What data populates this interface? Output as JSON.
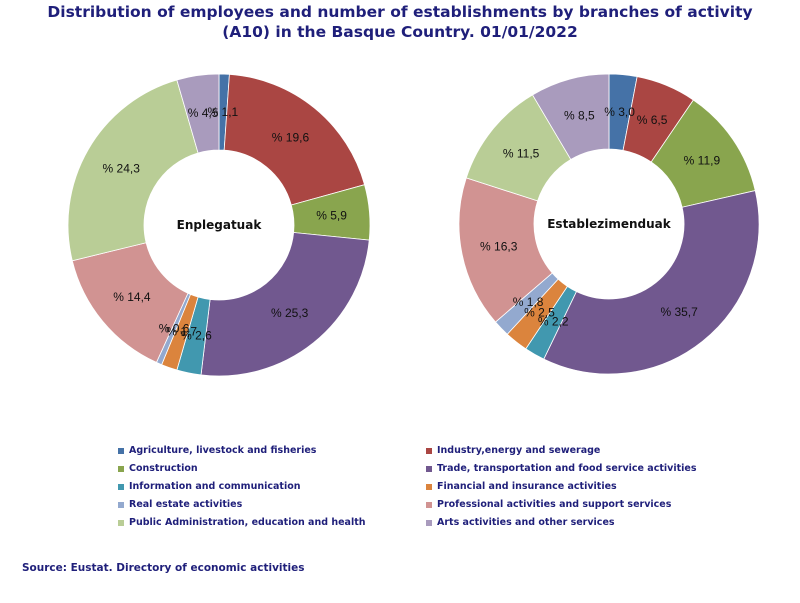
{
  "title": {
    "line1": "Distribution of employees and number of establishments by branches of activity",
    "line2": "(A10) in the Basque Country. 01/01/2022"
  },
  "source": "Source: Eustat. Directory of economic activities",
  "chart_data": [
    {
      "type": "pie",
      "donut": true,
      "center_label": "Enplegatuak",
      "categories": [
        "Agriculture, livestock and fisheries",
        "Industry,energy and sewerage",
        "Construction",
        "Trade, transportation and food service activities",
        "Information and communication",
        "Financial and insurance activities",
        "Real estate activities",
        "Professional activities and support services",
        "Public Administration, education and health",
        "Arts activities and other services"
      ],
      "values": [
        1.1,
        19.6,
        5.9,
        25.3,
        2.6,
        1.7,
        0.6,
        14.4,
        24.3,
        4.5
      ],
      "data_labels": [
        "% 1,1",
        "% 19,6",
        "% 5,9",
        "% 25,3",
        "% 2,6",
        "% 1,7",
        "% 0,6",
        "% 14,4",
        "% 24,3",
        "% 4,5"
      ]
    },
    {
      "type": "pie",
      "donut": true,
      "center_label": "Establezimenduak",
      "categories": [
        "Agriculture, livestock and fisheries",
        "Industry,energy and sewerage",
        "Construction",
        "Trade, transportation and food service activities",
        "Information and communication",
        "Financial and insurance activities",
        "Real estate activities",
        "Professional activities and support services",
        "Public Administration, education and health",
        "Arts activities and other services"
      ],
      "values": [
        3.0,
        6.5,
        11.9,
        35.7,
        2.2,
        2.5,
        1.8,
        16.3,
        11.5,
        8.5
      ],
      "data_labels": [
        "% 3,0",
        "% 6,5",
        "% 11,9",
        "% 35,7",
        "% 2,2",
        "% 2,5",
        "% 1,8",
        "% 16,3",
        "% 11,5",
        "% 8,5"
      ]
    }
  ],
  "legend": {
    "placement": "bottom",
    "items": [
      {
        "label": "Agriculture, livestock and fisheries",
        "color": "#4572a7"
      },
      {
        "label": "Industry,energy and sewerage",
        "color": "#aa4643"
      },
      {
        "label": "Construction",
        "color": "#89a54e"
      },
      {
        "label": "Trade, transportation and food service activities",
        "color": "#71588f"
      },
      {
        "label": "Information and communication",
        "color": "#4198af"
      },
      {
        "label": "Financial and insurance activities",
        "color": "#db843d"
      },
      {
        "label": "Real estate activities",
        "color": "#93a9cf"
      },
      {
        "label": "Professional activities and support services",
        "color": "#d19392"
      },
      {
        "label": "Public Administration, education and health",
        "color": "#b9cd96"
      },
      {
        "label": "Arts activities and other services",
        "color": "#a99bbd"
      }
    ]
  }
}
